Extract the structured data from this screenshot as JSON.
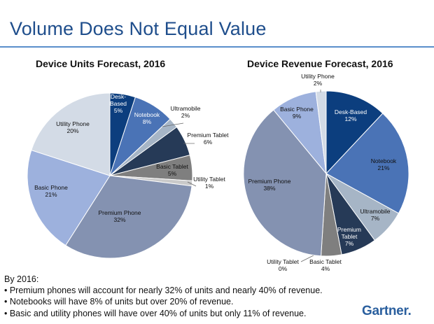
{
  "slide": {
    "title": "Volume Does Not Equal Value",
    "notes_heading": "By 2016:",
    "notes": [
      "• Premium phones will account for nearly 32% of units and nearly 40% of revenue.",
      "• Notebooks will have 8% of units but over 20% of revenue.",
      "• Basic and utility phones will have over 40% of units but only 11% of revenue."
    ],
    "logo": "Gartner",
    "logo_dot": "."
  },
  "chart_data": [
    {
      "type": "pie",
      "title": "Device Units Forecast, 2016",
      "slices": [
        {
          "name": "Desk-Based",
          "label_lines": [
            "Desk-",
            "Based"
          ],
          "value": 5,
          "value_label": "5%",
          "color": "#0c3e7e"
        },
        {
          "name": "Notebook",
          "label_lines": [
            "Notebook"
          ],
          "value": 8,
          "value_label": "8%",
          "color": "#4a73b6"
        },
        {
          "name": "Ultramobile",
          "label_lines": [
            "Ultramobile"
          ],
          "value": 2,
          "value_label": "2%",
          "color": "#a6b5c6"
        },
        {
          "name": "Premium Tablet",
          "label_lines": [
            "Premium Tablet"
          ],
          "value": 6,
          "value_label": "6%",
          "color": "#263a57"
        },
        {
          "name": "Basic Tablet",
          "label_lines": [
            "Basic Tablet"
          ],
          "value": 5,
          "value_label": "5%",
          "color": "#7f7f7f"
        },
        {
          "name": "Utility Tablet",
          "label_lines": [
            "Utility Tablet"
          ],
          "value": 1,
          "value_label": "1%",
          "color": "#c9c9c9"
        },
        {
          "name": "Premium Phone",
          "label_lines": [
            "Premium Phone"
          ],
          "value": 32,
          "value_label": "32%",
          "color": "#8492b1"
        },
        {
          "name": "Basic Phone",
          "label_lines": [
            "Basic Phone"
          ],
          "value": 21,
          "value_label": "21%",
          "color": "#9db1dd"
        },
        {
          "name": "Utility Phone",
          "label_lines": [
            "Utility Phone"
          ],
          "value": 20,
          "value_label": "20%",
          "color": "#d3dbe6"
        }
      ]
    },
    {
      "type": "pie",
      "title": "Device Revenue Forecast, 2016",
      "slices": [
        {
          "name": "Desk-Based",
          "label_lines": [
            "Desk-Based"
          ],
          "value": 12,
          "value_label": "12%",
          "color": "#0c3e7e"
        },
        {
          "name": "Notebook",
          "label_lines": [
            "Notebook"
          ],
          "value": 21,
          "value_label": "21%",
          "color": "#4a73b6"
        },
        {
          "name": "Ultramobile",
          "label_lines": [
            "Ultramobile"
          ],
          "value": 7,
          "value_label": "7%",
          "color": "#a6b5c6"
        },
        {
          "name": "Premium Tablet",
          "label_lines": [
            "Premium",
            "Tablet"
          ],
          "value": 7,
          "value_label": "7%",
          "color": "#263a57"
        },
        {
          "name": "Basic Tablet",
          "label_lines": [
            "Basic Tablet"
          ],
          "value": 4,
          "value_label": "4%",
          "color": "#7f7f7f"
        },
        {
          "name": "Utility Tablet",
          "label_lines": [
            "Utility Tablet"
          ],
          "value": 0,
          "value_label": "0%",
          "color": "#c9c9c9"
        },
        {
          "name": "Premium Phone",
          "label_lines": [
            "Premium Phone"
          ],
          "value": 38,
          "value_label": "38%",
          "color": "#8492b1"
        },
        {
          "name": "Basic Phone",
          "label_lines": [
            "Basic Phone"
          ],
          "value": 9,
          "value_label": "9%",
          "color": "#9db1dd"
        },
        {
          "name": "Utility Phone",
          "label_lines": [
            "Utility Phone"
          ],
          "value": 2,
          "value_label": "2%",
          "color": "#d3dbe6"
        }
      ]
    }
  ]
}
